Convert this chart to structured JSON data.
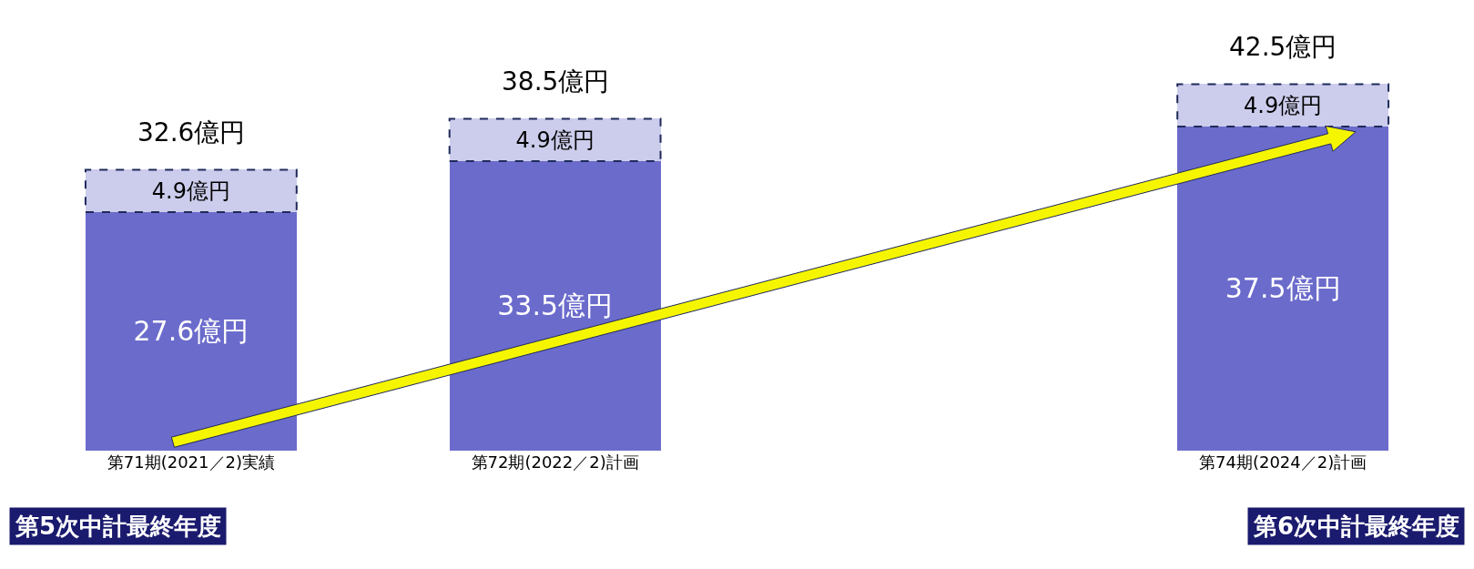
{
  "chart_data": {
    "type": "bar",
    "stacked": true,
    "categories": [
      "第71期(2021／2)実績",
      "第72期(2022／2)計画",
      null,
      "第74期(2024／2)計画"
    ],
    "series": [
      {
        "color": "#6b6bcc",
        "values": [
          27.6,
          33.5,
          null,
          37.5
        ],
        "value_labels": [
          "27.6億円",
          "33.5億円",
          null,
          "37.5億円"
        ]
      },
      {
        "color": "#ccccec",
        "values": [
          4.9,
          4.9,
          null,
          4.9
        ],
        "value_labels": [
          "4.9億円",
          "4.9億円",
          null,
          "4.9億円"
        ],
        "line_style": "dashed"
      }
    ],
    "totals": [
      "32.6億円",
      "38.5億円",
      null,
      "42.5億円"
    ],
    "annotations": [
      "第5次中計最終年度",
      "第6次中計最終年度"
    ],
    "legend": false
  }
}
